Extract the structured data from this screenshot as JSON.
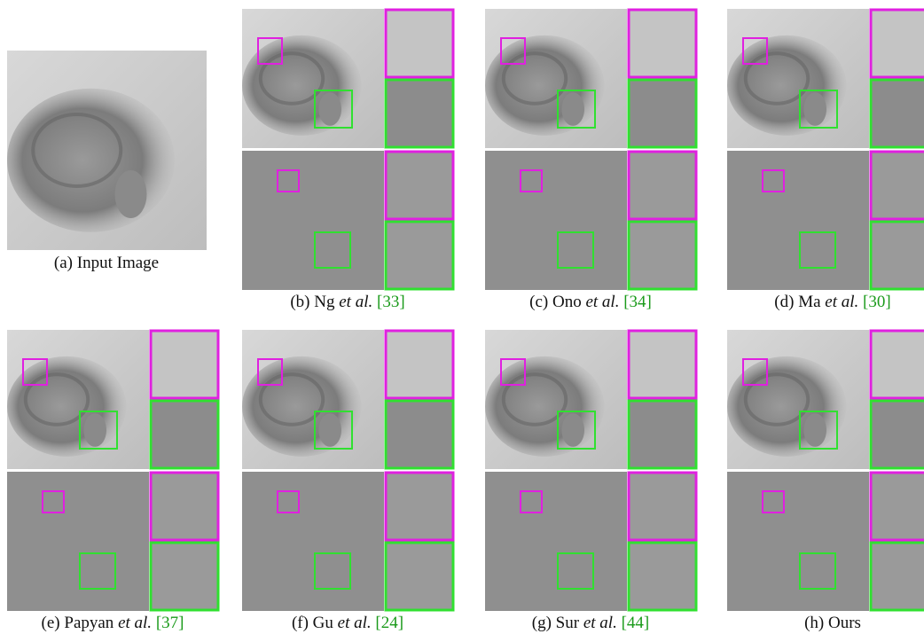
{
  "figure": {
    "panels": [
      {
        "letter": "(a)",
        "name": "Input Image"
      },
      {
        "letter": "(b)",
        "name": "Ng",
        "etal": "et al.",
        "ref": "[33]"
      },
      {
        "letter": "(c)",
        "name": "Ono",
        "etal": "et al.",
        "ref": "[34]"
      },
      {
        "letter": "(d)",
        "name": "Ma",
        "etal": "et al.",
        "ref": "[30]"
      },
      {
        "letter": "(e)",
        "name": "Papyan",
        "etal": "et al.",
        "ref": "[37]"
      },
      {
        "letter": "(f)",
        "name": "Gu",
        "etal": "et al.",
        "ref": "[24]"
      },
      {
        "letter": "(g)",
        "name": "Sur",
        "etal": "et al.",
        "ref": "[44]"
      },
      {
        "letter": "(h)",
        "name": "Ours"
      }
    ]
  }
}
